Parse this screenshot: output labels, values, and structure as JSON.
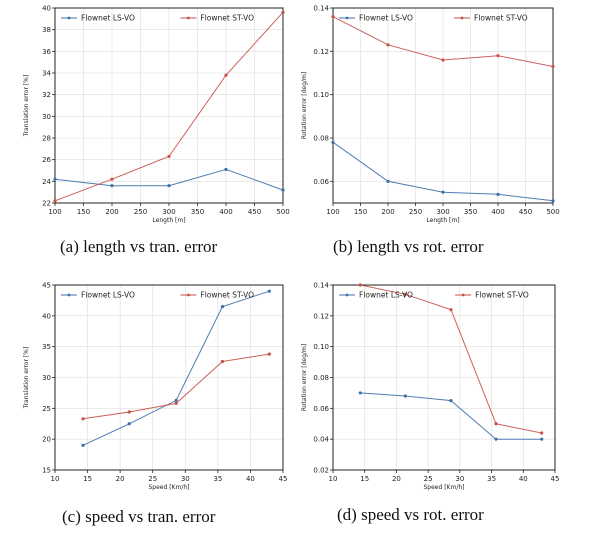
{
  "colors": {
    "ls": "#3d6fa8",
    "st": "#c8504a",
    "grid": "#dddddd",
    "frame": "#222222"
  },
  "chart_data": [
    {
      "type": "line",
      "caption": "(a) length vs tran. error",
      "xlabel": "Length [m]",
      "ylabel": "Translation error [%]",
      "xlim": [
        100,
        500
      ],
      "ylim": [
        22,
        40
      ],
      "xticks": [
        100,
        150,
        200,
        250,
        300,
        350,
        400,
        450,
        500
      ],
      "yticks": [
        22,
        24,
        26,
        28,
        30,
        32,
        34,
        36,
        38,
        40
      ],
      "grid": true,
      "legend": "top",
      "x": [
        100,
        200,
        300,
        400,
        500
      ],
      "series": [
        {
          "name": "Flownet LS-VO",
          "color_key": "ls",
          "values": [
            24.2,
            23.6,
            23.6,
            25.1,
            23.2
          ]
        },
        {
          "name": "Flownet ST-VO",
          "color_key": "st",
          "values": [
            22.2,
            24.2,
            26.3,
            33.8,
            39.6
          ]
        }
      ]
    },
    {
      "type": "line",
      "caption": "(b) length vs rot. error",
      "xlabel": "Length [m]",
      "ylabel": "Rotation error [deg/m]",
      "xlim": [
        100,
        500
      ],
      "ylim": [
        0.05,
        0.14
      ],
      "xticks": [
        100,
        150,
        200,
        250,
        300,
        350,
        400,
        450,
        500
      ],
      "yticks": [
        0.06,
        0.08,
        0.1,
        0.12,
        0.14
      ],
      "grid": true,
      "legend": "top",
      "x": [
        100,
        200,
        300,
        400,
        500
      ],
      "series": [
        {
          "name": "Flownet LS-VO",
          "color_key": "ls",
          "values": [
            0.078,
            0.06,
            0.055,
            0.054,
            0.051
          ]
        },
        {
          "name": "Flownet ST-VO",
          "color_key": "st",
          "values": [
            0.136,
            0.123,
            0.116,
            0.118,
            0.113
          ]
        }
      ]
    },
    {
      "type": "line",
      "caption": "(c) speed vs tran. error",
      "xlabel": "Speed [Km/h]",
      "ylabel": "Translation error [%]",
      "xlim": [
        10,
        45
      ],
      "ylim": [
        15,
        45
      ],
      "xticks": [
        10,
        15,
        20,
        25,
        30,
        35,
        40,
        45
      ],
      "yticks": [
        15,
        20,
        25,
        30,
        35,
        40,
        45
      ],
      "grid": true,
      "legend": "top",
      "x": [
        14.3,
        21.4,
        28.6,
        35.7,
        42.9
      ],
      "series": [
        {
          "name": "Flownet LS-VO",
          "color_key": "ls",
          "values": [
            19.0,
            22.5,
            26.3,
            41.5,
            44.0
          ]
        },
        {
          "name": "Flownet ST-VO",
          "color_key": "st",
          "values": [
            23.3,
            24.4,
            25.8,
            32.6,
            33.8
          ]
        }
      ]
    },
    {
      "type": "line",
      "caption": "(d) speed vs rot. error",
      "xlabel": "Speed [Km/h]",
      "ylabel": "Rotation error [deg/m]",
      "xlim": [
        10,
        45
      ],
      "ylim": [
        0.02,
        0.14
      ],
      "xticks": [
        10,
        15,
        20,
        25,
        30,
        35,
        40,
        45
      ],
      "yticks": [
        0.02,
        0.04,
        0.06,
        0.08,
        0.1,
        0.12,
        0.14
      ],
      "grid": true,
      "legend": "top",
      "x": [
        14.3,
        21.4,
        28.6,
        35.7,
        42.9
      ],
      "series": [
        {
          "name": "Flownet LS-VO",
          "color_key": "ls",
          "values": [
            0.07,
            0.068,
            0.065,
            0.04,
            0.04
          ]
        },
        {
          "name": "Flownet ST-VO",
          "color_key": "st",
          "values": [
            0.14,
            0.134,
            0.124,
            0.05,
            0.044
          ]
        }
      ]
    }
  ]
}
